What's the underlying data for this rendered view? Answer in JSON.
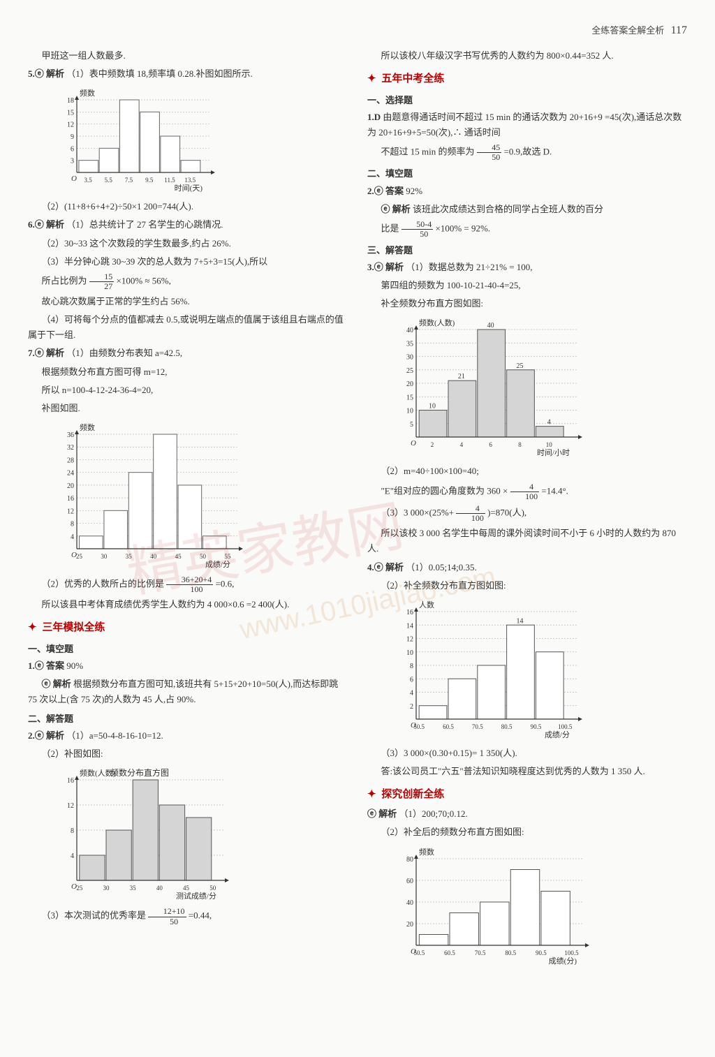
{
  "header": {
    "text": "全练答案全解全析",
    "page": "117"
  },
  "watermark": {
    "main": "精英家教网",
    "url": "www.1010jiajiao.com"
  },
  "left": {
    "p0": "甲班这一组人数最多.",
    "q5_label": "5.ⓔ 解析",
    "q5_1": "（1）表中频数填 18,频率填 0.28.补图如图所示.",
    "chart1": {
      "type": "histogram",
      "ylabel": "频数",
      "xlabel": "时间(天)",
      "xticks": [
        "3.5",
        "5.5",
        "7.5",
        "9.5",
        "11.5",
        "13.5"
      ],
      "yticks": [
        3,
        6,
        9,
        12,
        15,
        18
      ],
      "bars": [
        3,
        6,
        18,
        15,
        9,
        3
      ],
      "bar_color": "#ffffff",
      "border_color": "#666",
      "grid_color": "#bbb",
      "background": "#fafaf8"
    },
    "q5_2": "（2）(11+8+6+4+2)÷50×1 200=744(人).",
    "q6_label": "6.ⓔ 解析",
    "q6_1": "（1）总共统计了 27 名学生的心跳情况.",
    "q6_2": "（2）30~33 这个次数段的学生数最多,约占 26%.",
    "q6_3": "（3）半分钟心跳 30~39 次的总人数为 7+5+3=15(人),所以",
    "q6_3b_pre": "所占比例为",
    "q6_3b_num": "15",
    "q6_3b_den": "27",
    "q6_3b_post": "×100% ≈ 56%,",
    "q6_3c": "故心跳次数属于正常的学生约占 56%.",
    "q6_4": "（4）可将每个分点的值都减去 0.5,或说明左端点的值属于该组且右端点的值属于下一组.",
    "q7_label": "7.ⓔ 解析",
    "q7_1": "（1）由频数分布表知 a=42.5,",
    "q7_2": "根据频数分布直方图可得 m=12,",
    "q7_3": "所以 n=100-4-12-24-36-4=20,",
    "q7_4": "补图如图.",
    "chart2": {
      "type": "histogram",
      "ylabel": "频数",
      "xlabel": "成绩/分",
      "xticks": [
        "25",
        "30",
        "35",
        "40",
        "45",
        "50",
        "55"
      ],
      "yticks": [
        4,
        8,
        12,
        16,
        20,
        24,
        28,
        32,
        36
      ],
      "bars": [
        4,
        12,
        24,
        36,
        20,
        4
      ],
      "bar_color": "#ffffff",
      "border_color": "#666",
      "grid_color": "#bbb"
    },
    "q7_5_pre": "（2）优秀的人数所占的比例是",
    "q7_5_num": "36+20+4",
    "q7_5_den": "100",
    "q7_5_post": "=0.6,",
    "q7_6": "所以该县中考体育成绩优秀学生人数约为 4 000×0.6 =2 400(人).",
    "sec1": "三年模拟全练",
    "sub1": "一、填空题",
    "l1_label": "1.ⓔ 答案",
    "l1_ans": "90%",
    "l1_exp_label": "ⓔ 解析",
    "l1_exp": "根据频数分布直方图可知,该班共有 5+15+20+10=50(人),而达标即跳 75 次以上(含 75 次)的人数为 45 人,占 90%.",
    "sub2": "二、解答题",
    "l2_label": "2.ⓔ 解析",
    "l2_1": "（1）a=50-4-8-16-10=12.",
    "l2_2": "（2）补图如图:",
    "chart3": {
      "type": "histogram",
      "title": "频数分布直方图",
      "ylabel": "频数(人数)",
      "xlabel": "测试成绩/分",
      "xticks": [
        "25",
        "30",
        "35",
        "40",
        "45",
        "50"
      ],
      "yticks": [
        4,
        8,
        12,
        16
      ],
      "bars": [
        4,
        8,
        16,
        12,
        10
      ],
      "bar_color": "#d5d5d5",
      "border_color": "#555",
      "grid_color": "#bbb"
    },
    "l2_3_pre": "（3）本次测试的优秀率是",
    "l2_3_num": "12+10",
    "l2_3_den": "50",
    "l2_3_post": "=0.44,"
  },
  "right": {
    "p0": "所以该校八年级汉字书写优秀的人数约为 800×0.44=352 人.",
    "sec2": "五年中考全练",
    "subA": "一、选择题",
    "r1_label": "1.D",
    "r1_a": "由题意得通话时间不超过 15 min 的通话次数为 20+16+9 =45(次),通话总次数为 20+16+9+5=50(次),∴ 通话时间",
    "r1_b_pre": "不超过 15 min 的频率为",
    "r1_b_num": "45",
    "r1_b_den": "50",
    "r1_b_post": "=0.9,故选 D.",
    "subB": "二、填空题",
    "r2_label": "2.ⓔ 答案",
    "r2_ans": "92%",
    "r2_exp_label": "ⓔ 解析",
    "r2_exp_a": "该班此次成绩达到合格的同学占全班人数的百分",
    "r2_exp_b_pre": "比是",
    "r2_exp_b_num": "50-4",
    "r2_exp_b_den": "50",
    "r2_exp_b_post": "×100% = 92%.",
    "subC": "三、解答题",
    "r3_label": "3.ⓔ 解析",
    "r3_1": "（1）数据总数为 21÷21% = 100,",
    "r3_2": "第四组的频数为 100-10-21-40-4=25,",
    "r3_3": "补全频数分布直方图如图:",
    "chart4": {
      "type": "histogram",
      "ylabel": "频数(人数)",
      "xlabel": "时间/小时",
      "xticks": [
        "2",
        "4",
        "6",
        "8",
        "10"
      ],
      "yticks": [
        5,
        10,
        15,
        20,
        25,
        30,
        35,
        40
      ],
      "bars": [
        10,
        21,
        40,
        25,
        4
      ],
      "bar_labels": [
        "10",
        "21",
        "40",
        "25",
        "4"
      ],
      "bar_color": "#d5d5d5",
      "border_color": "#555",
      "grid_color": "#bbb"
    },
    "r3_4": "（2）m=40÷100×100=40;",
    "r3_5_pre": "\"E\"组对应的圆心角度数为 360 ×",
    "r3_5_num": "4",
    "r3_5_den": "100",
    "r3_5_post": "=14.4°.",
    "r3_6_pre": "（3）3 000×(25%+",
    "r3_6_num": "4",
    "r3_6_den": "100",
    "r3_6_post": ")=870(人),",
    "r3_7": "所以该校 3 000 名学生中每周的课外阅读时间不小于 6 小时的人数约为 870 人.",
    "r4_label": "4.ⓔ 解析",
    "r4_1": "（1）0.05;14;0.35.",
    "r4_2": "（2）补全频数分布直方图如图:",
    "chart5": {
      "type": "histogram",
      "ylabel": "人数",
      "xlabel": "成绩/分",
      "xticks": [
        "50.5",
        "60.5",
        "70.5",
        "80.5",
        "90.5",
        "100.5"
      ],
      "yticks": [
        2,
        4,
        6,
        8,
        10,
        12,
        14,
        16
      ],
      "bars": [
        2,
        6,
        8,
        14,
        10
      ],
      "bar_labels": [
        "",
        "",
        "",
        "14",
        ""
      ],
      "bar_color": "#ffffff",
      "border_color": "#555",
      "grid_color": "#bbb"
    },
    "r4_3": "（3）3 000×(0.30+0.15)= 1 350(人).",
    "r4_4": "答:该公司员工\"六五\"普法知识知晓程度达到优秀的人数为 1 350 人.",
    "sec3": "探究创新全练",
    "r5_label": "ⓔ 解析",
    "r5_1": "（1）200;70;0.12.",
    "r5_2": "（2）补全后的频数分布直方图如图:",
    "chart6": {
      "type": "histogram",
      "ylabel": "频数",
      "xlabel": "成绩(分)",
      "xticks": [
        "50.5",
        "60.5",
        "70.5",
        "80.5",
        "90.5",
        "100.5"
      ],
      "yticks": [
        20,
        40,
        60,
        80
      ],
      "bars": [
        10,
        30,
        40,
        70,
        50
      ],
      "bar_color": "#ffffff",
      "border_color": "#555",
      "grid_color": "#bbb"
    }
  }
}
